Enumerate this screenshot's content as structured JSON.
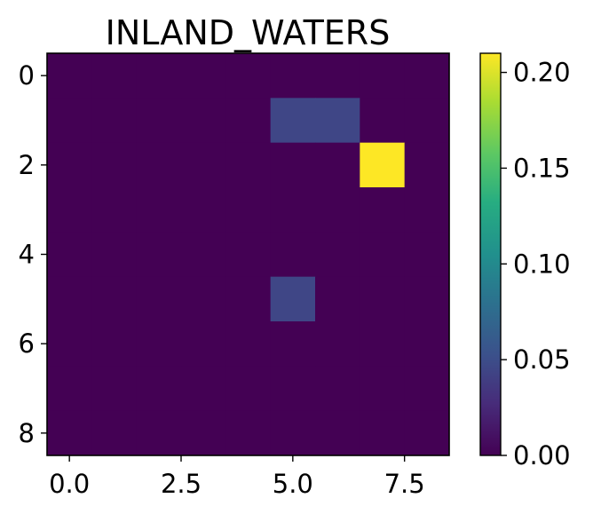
{
  "chart_data": {
    "type": "heatmap",
    "title": "INLAND_WATERS",
    "xlabel": "",
    "ylabel": "",
    "colormap": "viridis",
    "rows": 9,
    "cols": 9,
    "x_ticks": [
      0.0,
      2.5,
      5.0,
      7.5
    ],
    "x_tick_labels": [
      "0.0",
      "2.5",
      "5.0",
      "7.5"
    ],
    "y_ticks": [
      0,
      2,
      4,
      6,
      8
    ],
    "y_tick_labels": [
      "0",
      "2",
      "4",
      "6",
      "8"
    ],
    "xlim": [
      -0.5,
      8.5
    ],
    "ylim": [
      8.5,
      -0.5
    ],
    "values": [
      [
        0,
        0,
        0,
        0,
        0,
        0,
        0,
        0,
        0
      ],
      [
        0,
        0,
        0,
        0,
        0,
        0.045,
        0.045,
        0,
        0
      ],
      [
        0,
        0,
        0,
        0,
        0,
        0,
        0,
        0.21,
        0
      ],
      [
        0,
        0,
        0,
        0,
        0,
        0,
        0,
        0,
        0
      ],
      [
        0,
        0,
        0,
        0,
        0,
        0,
        0,
        0,
        0
      ],
      [
        0,
        0,
        0,
        0,
        0,
        0.045,
        0,
        0,
        0
      ],
      [
        0,
        0,
        0,
        0,
        0,
        0,
        0,
        0,
        0
      ],
      [
        0,
        0,
        0,
        0,
        0,
        0,
        0,
        0,
        0
      ],
      [
        0,
        0,
        0,
        0,
        0,
        0,
        0,
        0,
        0
      ]
    ],
    "colorbar": {
      "min": 0.0,
      "max": 0.21,
      "ticks": [
        0.0,
        0.05,
        0.1,
        0.15,
        0.2
      ],
      "tick_labels": [
        "0.00",
        "0.05",
        "0.10",
        "0.15",
        "0.20"
      ]
    },
    "grid": false,
    "legend": "none"
  }
}
